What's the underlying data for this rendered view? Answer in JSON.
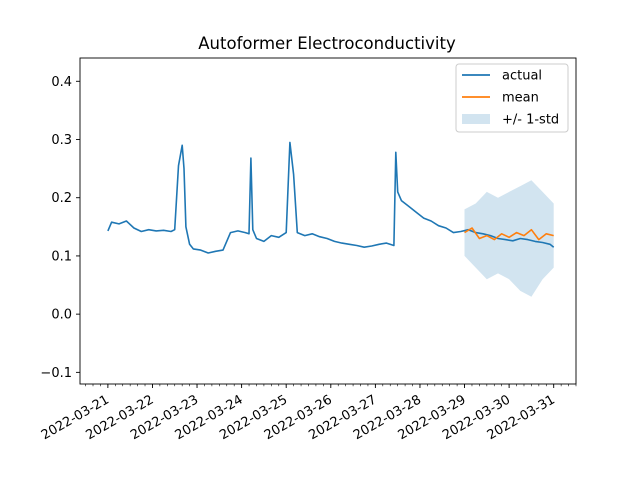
{
  "chart_data": {
    "type": "line",
    "title": "Autoformer Electroconductivity",
    "xlabel": "",
    "ylabel": "",
    "x_ticks": [
      "2022-03-21",
      "2022-03-22",
      "2022-03-23",
      "2022-03-24",
      "2022-03-25",
      "2022-03-26",
      "2022-03-27",
      "2022-03-28",
      "2022-03-29",
      "2022-03-30",
      "2022-03-31"
    ],
    "y_ticks": [
      "−0.1",
      "0.0",
      "0.1",
      "0.2",
      "0.3",
      "0.4"
    ],
    "xlim": [
      "2022-03-20T09:00",
      "2022-03-31T12:00"
    ],
    "ylim": [
      -0.12,
      0.44
    ],
    "grid": false,
    "legend_position": "top-right",
    "colors": {
      "actual": "#1f77b4",
      "mean": "#ff7f0e",
      "band": "#1f77b4"
    },
    "series": [
      {
        "name": "actual",
        "x": [
          "2022-03-21T00:00",
          "2022-03-21T02:00",
          "2022-03-21T06:00",
          "2022-03-21T10:00",
          "2022-03-21T14:00",
          "2022-03-21T18:00",
          "2022-03-21T22:00",
          "2022-03-22T02:00",
          "2022-03-22T06:00",
          "2022-03-22T10:00",
          "2022-03-22T12:00",
          "2022-03-22T14:00",
          "2022-03-22T16:00",
          "2022-03-22T17:00",
          "2022-03-22T18:00",
          "2022-03-22T20:00",
          "2022-03-22T22:00",
          "2022-03-23T02:00",
          "2022-03-23T06:00",
          "2022-03-23T10:00",
          "2022-03-23T14:00",
          "2022-03-23T18:00",
          "2022-03-23T22:00",
          "2022-03-24T02:00",
          "2022-03-24T04:00",
          "2022-03-24T05:00",
          "2022-03-24T06:00",
          "2022-03-24T08:00",
          "2022-03-24T12:00",
          "2022-03-24T16:00",
          "2022-03-24T20:00",
          "2022-03-25T00:00",
          "2022-03-25T02:00",
          "2022-03-25T04:00",
          "2022-03-25T06:00",
          "2022-03-25T10:00",
          "2022-03-25T14:00",
          "2022-03-25T18:00",
          "2022-03-25T22:00",
          "2022-03-26T02:00",
          "2022-03-26T06:00",
          "2022-03-26T10:00",
          "2022-03-26T14:00",
          "2022-03-26T18:00",
          "2022-03-26T22:00",
          "2022-03-27T02:00",
          "2022-03-27T06:00",
          "2022-03-27T10:00",
          "2022-03-27T11:00",
          "2022-03-27T12:00",
          "2022-03-27T14:00",
          "2022-03-27T18:00",
          "2022-03-27T22:00",
          "2022-03-28T02:00",
          "2022-03-28T06:00",
          "2022-03-28T10:00",
          "2022-03-28T14:00",
          "2022-03-28T18:00",
          "2022-03-28T22:00",
          "2022-03-29T02:00",
          "2022-03-29T06:00",
          "2022-03-29T10:00",
          "2022-03-29T14:00",
          "2022-03-29T18:00",
          "2022-03-29T22:00",
          "2022-03-30T02:00",
          "2022-03-30T06:00",
          "2022-03-30T10:00",
          "2022-03-30T14:00",
          "2022-03-30T18:00",
          "2022-03-30T22:00",
          "2022-03-31T00:00"
        ],
        "values": [
          0.143,
          0.158,
          0.155,
          0.16,
          0.148,
          0.142,
          0.145,
          0.143,
          0.144,
          0.142,
          0.145,
          0.255,
          0.29,
          0.25,
          0.15,
          0.12,
          0.112,
          0.11,
          0.105,
          0.108,
          0.11,
          0.14,
          0.143,
          0.14,
          0.138,
          0.268,
          0.145,
          0.13,
          0.125,
          0.135,
          0.132,
          0.14,
          0.295,
          0.24,
          0.14,
          0.135,
          0.138,
          0.133,
          0.13,
          0.125,
          0.122,
          0.12,
          0.118,
          0.115,
          0.117,
          0.12,
          0.122,
          0.118,
          0.278,
          0.21,
          0.195,
          0.185,
          0.175,
          0.165,
          0.16,
          0.152,
          0.148,
          0.14,
          0.142,
          0.145,
          0.14,
          0.138,
          0.135,
          0.13,
          0.128,
          0.126,
          0.13,
          0.128,
          0.125,
          0.123,
          0.12,
          0.115
        ]
      },
      {
        "name": "mean",
        "x": [
          "2022-03-29T00:00",
          "2022-03-29T04:00",
          "2022-03-29T08:00",
          "2022-03-29T12:00",
          "2022-03-29T16:00",
          "2022-03-29T20:00",
          "2022-03-30T00:00",
          "2022-03-30T04:00",
          "2022-03-30T08:00",
          "2022-03-30T12:00",
          "2022-03-30T16:00",
          "2022-03-30T20:00",
          "2022-03-31T00:00"
        ],
        "values": [
          0.14,
          0.148,
          0.13,
          0.135,
          0.128,
          0.138,
          0.132,
          0.14,
          0.135,
          0.145,
          0.128,
          0.138,
          0.135
        ]
      }
    ],
    "band": {
      "name": "+/- 1-std",
      "x": [
        "2022-03-29T00:00",
        "2022-03-29T06:00",
        "2022-03-29T12:00",
        "2022-03-29T18:00",
        "2022-03-30T00:00",
        "2022-03-30T06:00",
        "2022-03-30T12:00",
        "2022-03-30T18:00",
        "2022-03-31T00:00"
      ],
      "lower": [
        0.1,
        0.08,
        0.06,
        0.07,
        0.06,
        0.04,
        0.03,
        0.06,
        0.08
      ],
      "upper": [
        0.18,
        0.19,
        0.21,
        0.2,
        0.21,
        0.22,
        0.23,
        0.21,
        0.19
      ]
    }
  }
}
